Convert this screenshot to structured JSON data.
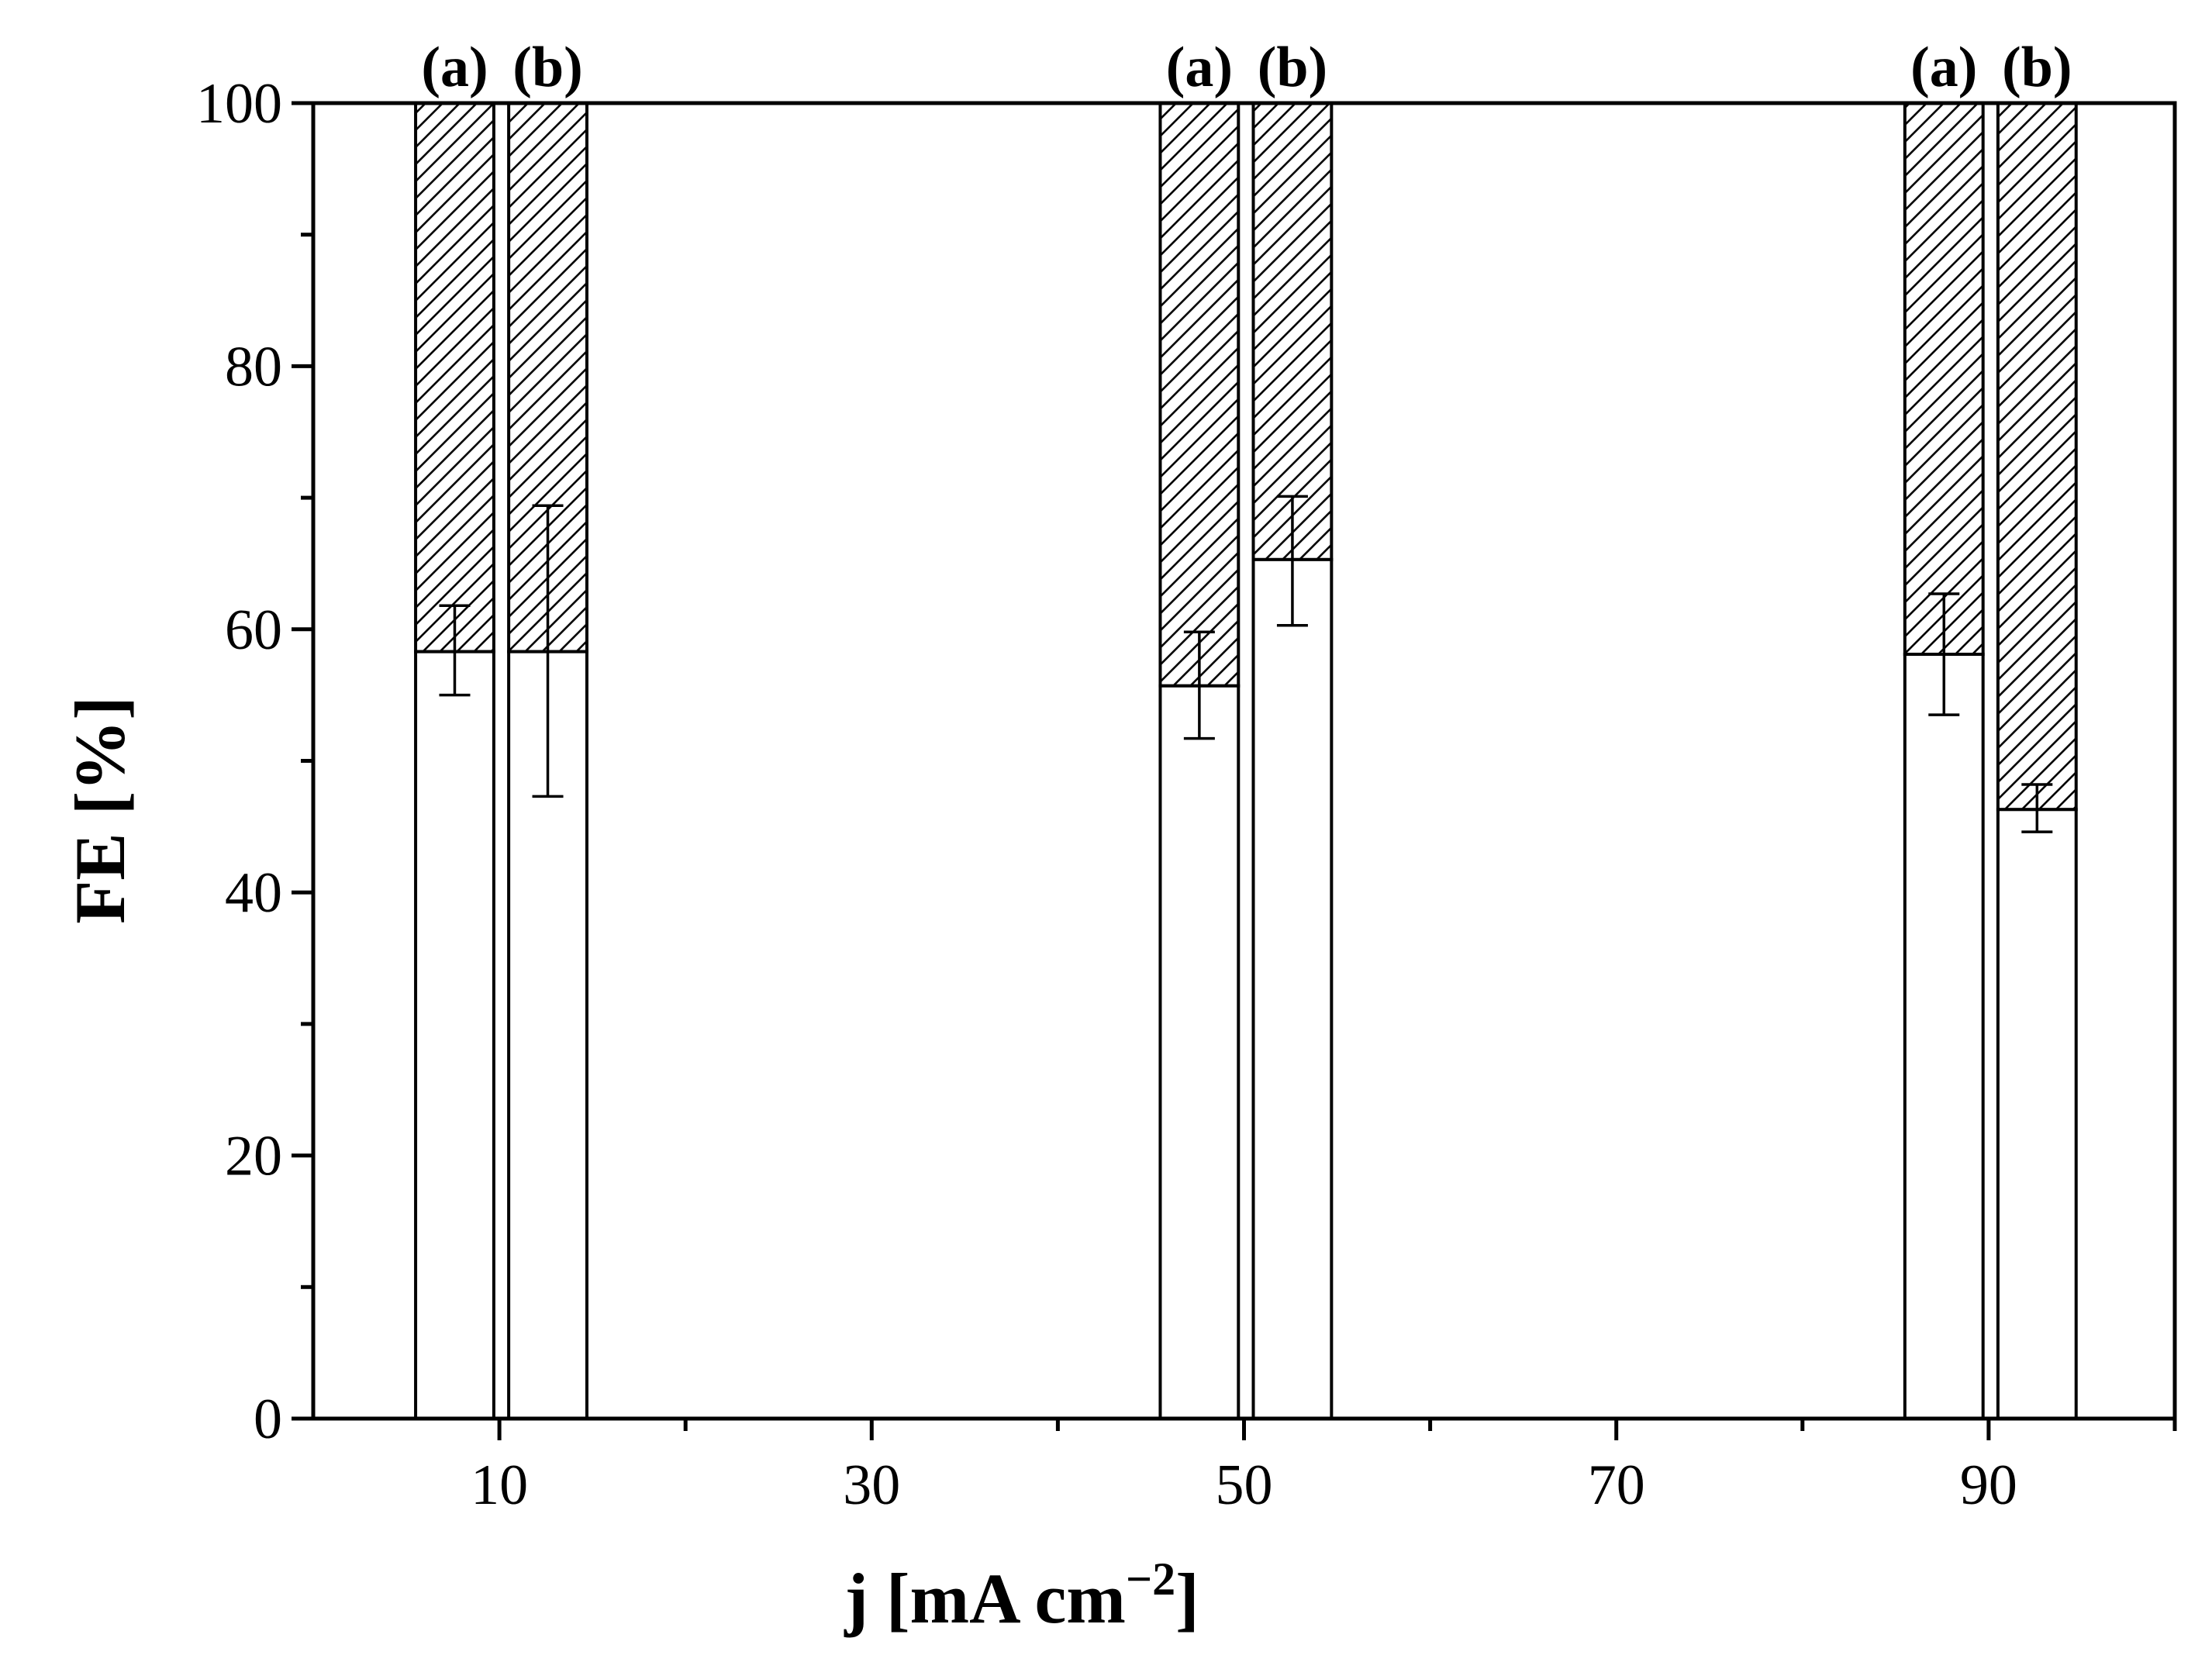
{
  "chart_data": {
    "type": "bar",
    "stacked": true,
    "xlabel": "j [mA cm",
    "xlabel_sup": "−2",
    "xlabel_close": "]",
    "ylabel": "FE [%]",
    "xlim": [
      0,
      100
    ],
    "ylim": [
      0,
      100
    ],
    "xticks": [
      10,
      30,
      50,
      70,
      90
    ],
    "xticks_minor": [
      20,
      40,
      60,
      80,
      100
    ],
    "yticks": [
      0,
      20,
      40,
      60,
      80,
      100
    ],
    "yticks_minor": [
      10,
      30,
      50,
      70,
      90
    ],
    "grid": false,
    "bars": [
      {
        "label": "(a)",
        "x_start": 5.5,
        "x_end": 9.7,
        "value": 58.3,
        "err_low": 55.0,
        "err_high": 61.8,
        "err_x": 7.6
      },
      {
        "label": "(b)",
        "x_start": 10.5,
        "x_end": 14.7,
        "value": 58.3,
        "err_low": 47.3,
        "err_high": 69.4,
        "err_x": 12.6
      },
      {
        "label": "(a)",
        "x_start": 45.5,
        "x_end": 49.7,
        "value": 55.7,
        "err_low": 51.7,
        "err_high": 59.8,
        "err_x": 47.6
      },
      {
        "label": "(b)",
        "x_start": 50.5,
        "x_end": 54.7,
        "value": 65.3,
        "err_low": 60.3,
        "err_high": 70.1,
        "err_x": 52.6
      },
      {
        "label": "(a)",
        "x_start": 85.5,
        "x_end": 89.7,
        "value": 58.1,
        "err_low": 53.5,
        "err_high": 62.7,
        "err_x": 87.6
      },
      {
        "label": "(b)",
        "x_start": 90.5,
        "x_end": 94.7,
        "value": 46.3,
        "err_low": 44.6,
        "err_high": 48.2,
        "err_x": 92.6
      }
    ],
    "series": [
      {
        "name": "",
        "fill": "none"
      },
      {
        "name": "",
        "fill": "hatched",
        "value_top": 100
      }
    ],
    "colors": {
      "line": "#000000",
      "background": "#ffffff"
    }
  }
}
